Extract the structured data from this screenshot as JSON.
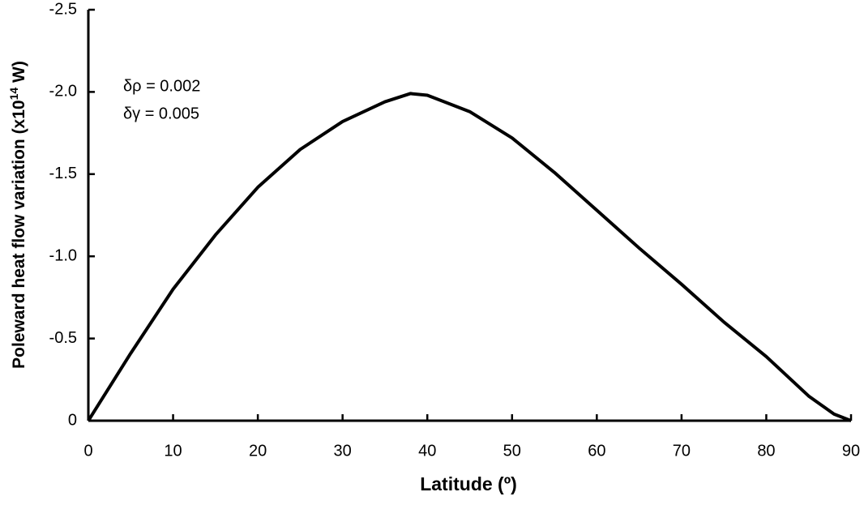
{
  "chart_data": {
    "type": "line",
    "xlabel": "Latitude (º)",
    "ylabel": [
      "Poleward heat flow variation (x10",
      "14",
      " W)"
    ],
    "annotations": [
      "δρ = 0.002",
      "δγ = 0.005"
    ],
    "x": [
      0,
      5,
      10,
      15,
      20,
      25,
      30,
      35,
      38,
      40,
      45,
      50,
      55,
      60,
      65,
      70,
      75,
      80,
      85,
      88,
      90
    ],
    "series": [
      {
        "color": "#000000",
        "values": [
          0,
          -0.41,
          -0.8,
          -1.13,
          -1.42,
          -1.65,
          -1.82,
          -1.94,
          -1.99,
          -1.98,
          -1.88,
          -1.72,
          -1.51,
          -1.28,
          -1.05,
          -0.83,
          -0.6,
          -0.39,
          -0.15,
          -0.04,
          0
        ]
      }
    ],
    "xlim": [
      0,
      90
    ],
    "xticks": [
      0,
      10,
      20,
      30,
      40,
      50,
      60,
      70,
      80,
      90
    ],
    "ylim": [
      0,
      -2.5
    ],
    "yticks": [
      0,
      -0.5,
      {
        "value": -1,
        "label": "-1.0"
      },
      -1.5,
      {
        "value": -2,
        "label": "-2.0"
      },
      -2.5
    ],
    "grid": false
  }
}
